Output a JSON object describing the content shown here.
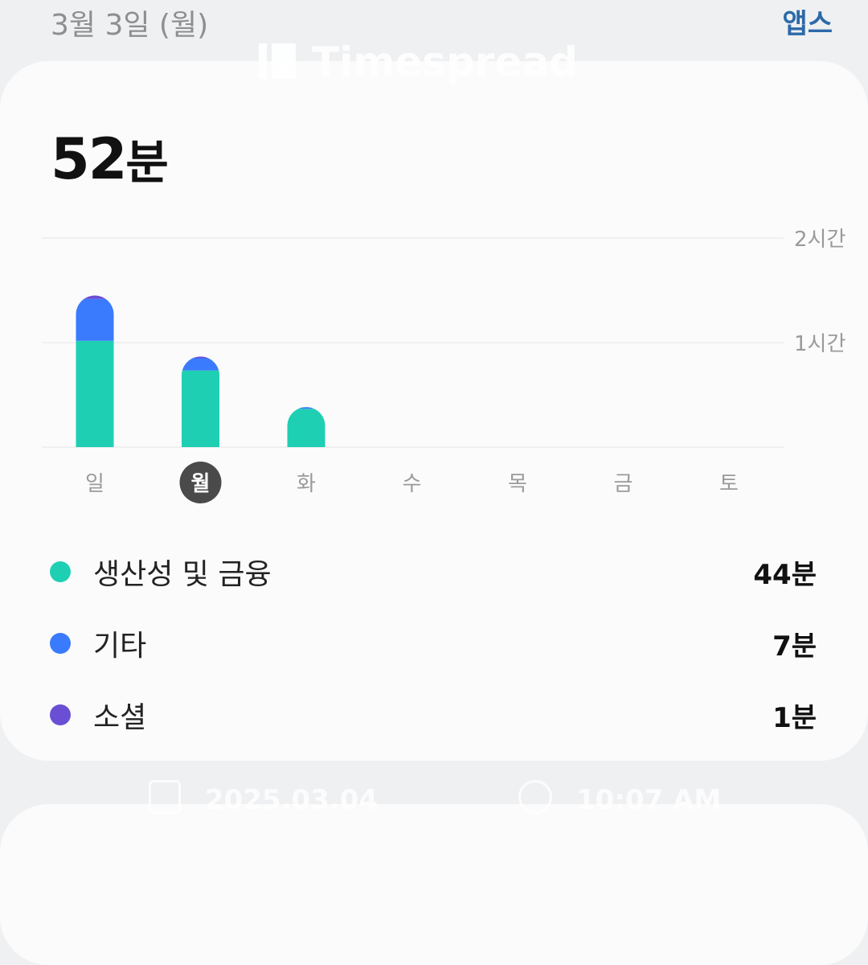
{
  "header": {
    "date": "3월 3일 (월)",
    "apps_link": "앱스"
  },
  "summary": {
    "total_value": "52",
    "total_unit": "분"
  },
  "colors": {
    "productivity": "#1fcfb3",
    "other": "#3a7bfd",
    "social": "#6a4fd4",
    "selected_day_bg": "#4a4a4a"
  },
  "chart_data": {
    "type": "bar",
    "stacked": true,
    "categories": [
      "일",
      "월",
      "화",
      "수",
      "목",
      "금",
      "토"
    ],
    "selected_category": "월",
    "y_unit": "minutes",
    "ylim": [
      0,
      120
    ],
    "y_ticks": [
      {
        "value": 60,
        "label": "1시간"
      },
      {
        "value": 120,
        "label": "2시간"
      }
    ],
    "grid": true,
    "series": [
      {
        "name": "생산성 및 금융",
        "color": "#1fcfb3",
        "values": [
          61,
          44,
          22,
          0,
          0,
          0,
          0
        ]
      },
      {
        "name": "기타",
        "color": "#3a7bfd",
        "values": [
          24,
          7,
          1,
          0,
          0,
          0,
          0
        ]
      },
      {
        "name": "소셜",
        "color": "#6a4fd4",
        "values": [
          2,
          1,
          0,
          0,
          0,
          0,
          0
        ]
      }
    ]
  },
  "legend": [
    {
      "label": "생산성 및 금융",
      "value": "44분",
      "color": "#1fcfb3"
    },
    {
      "label": "기타",
      "value": "7분",
      "color": "#3a7bfd"
    },
    {
      "label": "소셜",
      "value": "1분",
      "color": "#6a4fd4"
    }
  ],
  "watermark": {
    "brand": "Timespread",
    "date": "2025.03.04",
    "time": "10:07 AM",
    "calendar_icon": "calendar-icon",
    "clock_icon": "alarm-clock-icon"
  }
}
